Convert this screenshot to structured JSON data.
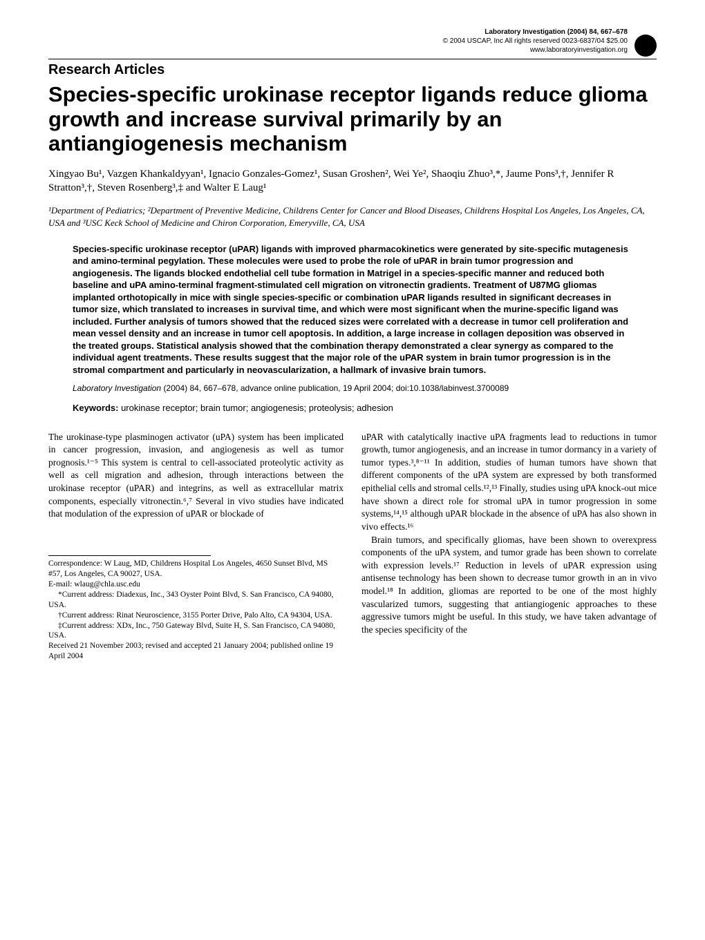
{
  "header": {
    "journal_line": "Laboratory Investigation (2004) 84, 667–678",
    "copyright": "© 2004 USCAP, Inc   All rights reserved 0023-6837/04 $25.00",
    "website": "www.laboratoryinvestigation.org"
  },
  "section_header": "Research Articles",
  "title": "Species-specific urokinase receptor ligands reduce glioma growth and increase survival primarily by an antiangiogenesis mechanism",
  "authors": "Xingyao Bu¹, Vazgen Khankaldyyan¹, Ignacio Gonzales-Gomez¹, Susan Groshen², Wei Ye², Shaoqiu Zhuo³,*, Jaume Pons³,†, Jennifer R Stratton³,†, Steven Rosenberg³,‡ and Walter E Laug¹",
  "affiliations": "¹Department of Pediatrics; ²Department of Preventive Medicine, Childrens Center for Cancer and Blood Diseases, Childrens Hospital Los Angeles, Los Angeles, CA, USA and ³USC Keck School of Medicine and Chiron Corporation, Emeryville, CA, USA",
  "abstract": "Species-specific urokinase receptor (uPAR) ligands with improved pharmacokinetics were generated by site-specific mutagenesis and amino-terminal pegylation. These molecules were used to probe the role of uPAR in brain tumor progression and angiogenesis. The ligands blocked endothelial cell tube formation in Matrigel in a species-specific manner and reduced both baseline and uPA amino-terminal fragment-stimulated cell migration on vitronectin gradients. Treatment of U87MG gliomas implanted orthotopically in mice with single species-specific or combination uPAR ligands resulted in significant decreases in tumor size, which translated to increases in survival time, and which were most significant when the murine-specific ligand was included. Further analysis of tumors showed that the reduced sizes were correlated with a decrease in tumor cell proliferation and mean vessel density and an increase in tumor cell apoptosis. In addition, a large increase in collagen deposition was observed in the treated groups. Statistical analysis showed that the combination therapy demonstrated a clear synergy as compared to the individual agent treatments. These results suggest that the major role of the uPAR system in brain tumor progression is in the stromal compartment and particularly in neovascularization, a hallmark of invasive brain tumors.",
  "citation": {
    "journal": "Laboratory Investigation",
    "year_vol": "(2004) 84,",
    "pages": "667–678, advance online publication, 19 April 2004; doi:10.1038/labinvest.3700089"
  },
  "keywords": {
    "label": "Keywords:",
    "text": " urokinase receptor; brain tumor; angiogenesis; proteolysis; adhesion"
  },
  "body": {
    "left_p1": "The urokinase-type plasminogen activator (uPA) system has been implicated in cancer progression, invasion, and angiogenesis as well as tumor prognosis.¹⁻⁵ This system is central to cell-associated proteolytic activity as well as cell migration and adhesion, through interactions between the urokinase receptor (uPAR) and integrins, as well as extracellular matrix components, especially vitronectin.⁶,⁷ Several in vivo studies have indicated that modulation of the expression of uPAR or blockade of",
    "right_p1": "uPAR with catalytically inactive uPA fragments lead to reductions in tumor growth, tumor angiogenesis, and an increase in tumor dormancy in a variety of tumor types.³,⁸⁻¹¹ In addition, studies of human tumors have shown that different components of the uPA system are expressed by both transformed epithelial cells and stromal cells.¹²,¹³ Finally, studies using uPA knock-out mice have shown a direct role for stromal uPA in tumor progression in some systems,¹⁴,¹⁵ although uPAR blockade in the absence of uPA has also shown in vivo effects.¹⁶",
    "right_p2": "Brain tumors, and specifically gliomas, have been shown to overexpress components of the uPA system, and tumor grade has been shown to correlate with expression levels.¹⁷ Reduction in levels of uPAR expression using antisense technology has been shown to decrease tumor growth in an in vivo model.¹⁸ In addition, gliomas are reported to be one of the most highly vascularized tumors, suggesting that antiangiogenic approaches to these aggressive tumors might be useful. In this study, we have taken advantage of the species specificity of the"
  },
  "correspondence": {
    "line1": "Correspondence: W Laug, MD, Childrens Hospital Los Angeles, 4650 Sunset Blvd, MS #57, Los Angeles, CA 90027, USA.",
    "line2": "E-mail: wlaug@chla.usc.edu",
    "line3": "*Current address: Diadexus, Inc., 343 Oyster Point Blvd, S. San Francisco, CA 94080, USA.",
    "line4": "†Current address: Rinat Neuroscience, 3155 Porter Drive, Palo Alto, CA 94304, USA.",
    "line5": "‡Current address: XDx, Inc., 750 Gateway Blvd, Suite H, S. San Francisco, CA 94080, USA.",
    "line6": "Received 21 November 2003; revised and accepted 21 January 2004; published online 19 April 2004"
  }
}
